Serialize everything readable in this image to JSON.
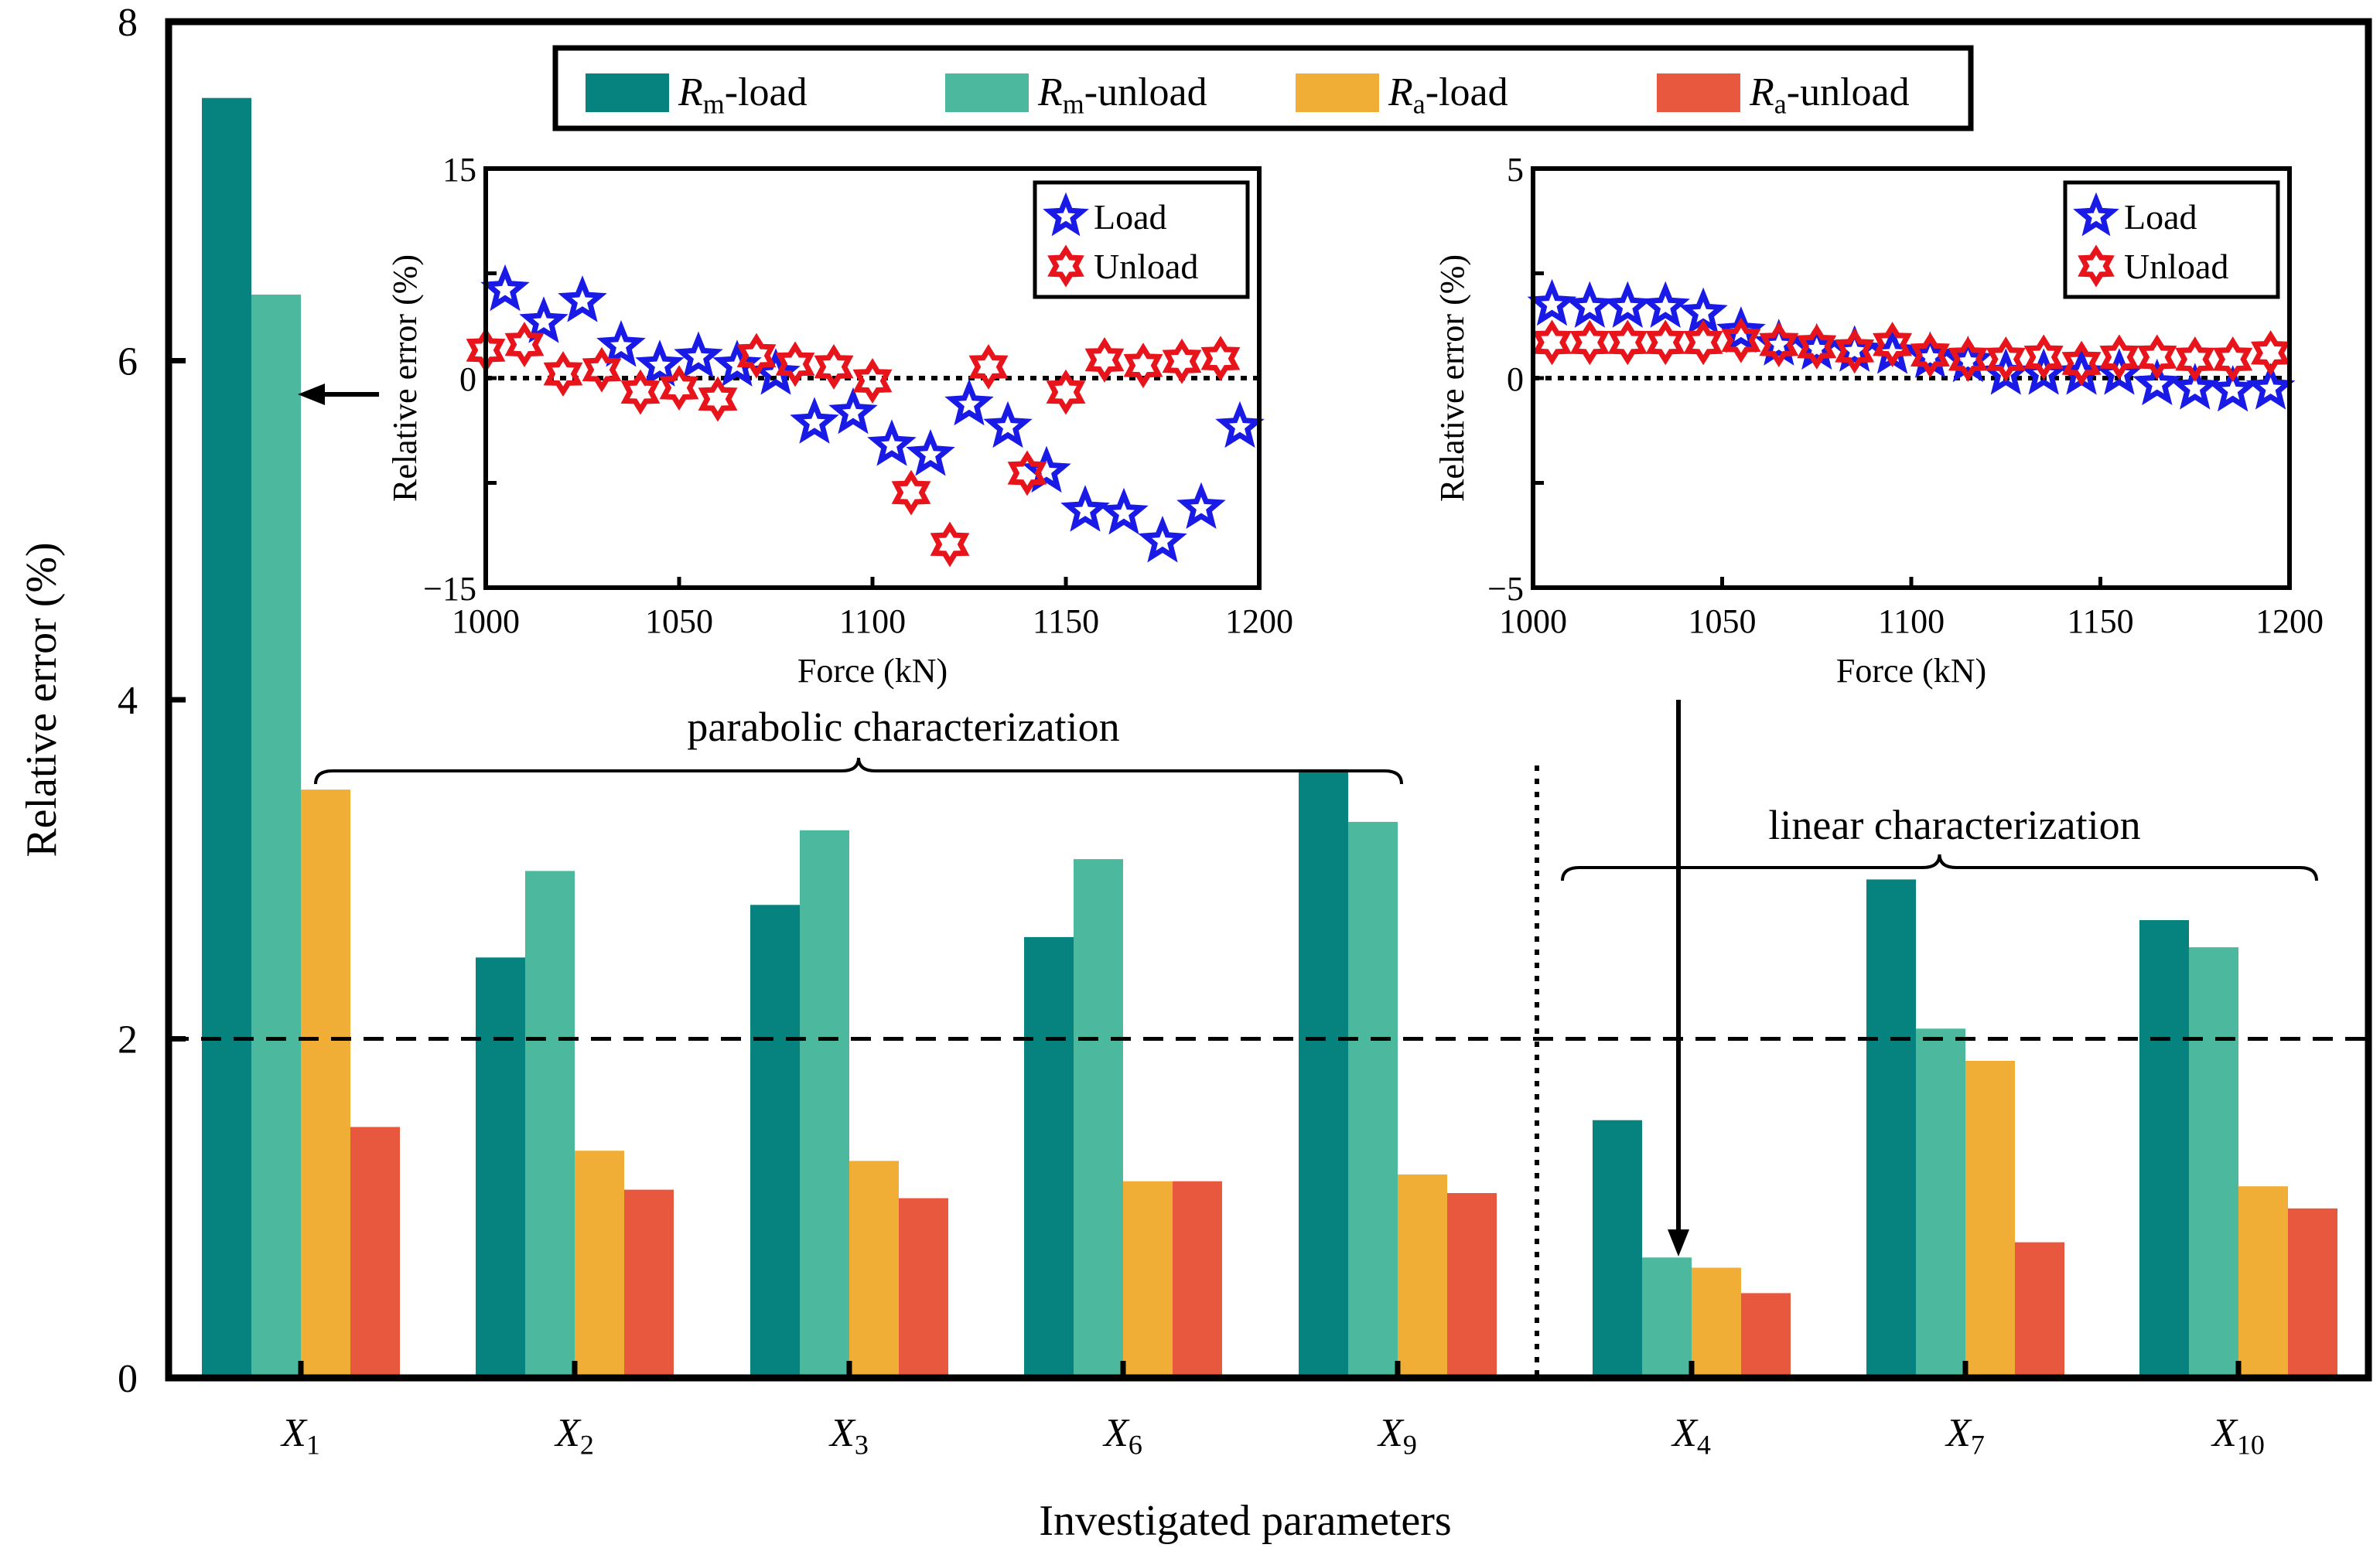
{
  "chart_data": [
    {
      "type": "bar",
      "title": "",
      "xlabel": "Investigated parameters",
      "ylabel": "Relative error (%)",
      "ylim": [
        0,
        8
      ],
      "yticks": [
        "0",
        "2",
        "4",
        "6",
        "8"
      ],
      "categories": [
        {
          "var": "X",
          "sub": "1"
        },
        {
          "var": "X",
          "sub": "2"
        },
        {
          "var": "X",
          "sub": "3"
        },
        {
          "var": "X",
          "sub": "6"
        },
        {
          "var": "X",
          "sub": "9"
        },
        {
          "var": "X",
          "sub": "4"
        },
        {
          "var": "X",
          "sub": "7"
        },
        {
          "var": "X",
          "sub": "10"
        }
      ],
      "series": [
        {
          "name": "Rm-load",
          "legend_main": "R",
          "legend_sub": "m",
          "legend_rest": "-load",
          "color": "#07837f",
          "values": [
            7.55,
            2.48,
            2.79,
            2.6,
            3.59,
            1.52,
            2.94,
            2.7
          ]
        },
        {
          "name": "Rm-unload",
          "legend_main": "R",
          "legend_sub": "m",
          "legend_rest": "-unload",
          "color": "#4cb99e",
          "values": [
            6.39,
            2.99,
            3.23,
            3.06,
            3.28,
            0.71,
            2.06,
            2.54
          ]
        },
        {
          "name": "Ra-load",
          "legend_main": "R",
          "legend_sub": "a",
          "legend_rest": "-load",
          "color": "#f0ae37",
          "values": [
            3.47,
            1.34,
            1.28,
            1.16,
            1.2,
            0.65,
            1.87,
            1.13
          ]
        },
        {
          "name": "Ra-unload",
          "legend_main": "R",
          "legend_sub": "a",
          "legend_rest": "-unload",
          "color": "#e8583f",
          "values": [
            1.48,
            1.11,
            1.06,
            1.16,
            1.09,
            0.5,
            0.8,
            1.0
          ]
        }
      ],
      "reference_line": 2,
      "group_labels": {
        "parabolic": "parabolic characterization",
        "linear": "linear characterization"
      }
    },
    {
      "type": "scatter",
      "xlabel": "Force (kN)",
      "ylabel": "Relative error (%)",
      "xlim": [
        1000,
        1200
      ],
      "ylim": [
        -15,
        15
      ],
      "xticks": [
        "1000",
        "1050",
        "1100",
        "1150",
        "1200"
      ],
      "yticks": [
        "15",
        "0",
        "−15"
      ],
      "series": [
        {
          "name": "Load",
          "color": "#1a1ae6",
          "x": [
            1005,
            1015,
            1025,
            1035,
            1045,
            1055,
            1065,
            1075,
            1085,
            1095,
            1105,
            1115,
            1125,
            1135,
            1145,
            1155,
            1165,
            1175,
            1185,
            1195
          ],
          "y": [
            6.3,
            4.0,
            5.5,
            2.3,
            0.9,
            1.5,
            0.9,
            0.3,
            -3.2,
            -2.5,
            -4.8,
            -5.5,
            -1.9,
            -3.5,
            -6.7,
            -9.5,
            -9.7,
            -11.7,
            -9.3,
            -3.5
          ]
        },
        {
          "name": "Unload",
          "color": "#e8141c",
          "x": [
            1000,
            1010,
            1020,
            1030,
            1040,
            1050,
            1060,
            1070,
            1080,
            1090,
            1100,
            1110,
            1120,
            1130,
            1140,
            1150,
            1160,
            1170,
            1180,
            1190
          ],
          "y": [
            2.0,
            2.4,
            0.3,
            0.6,
            -1.0,
            -0.7,
            -1.5,
            1.6,
            1.0,
            0.8,
            -0.2,
            -8.2,
            -11.9,
            0.8,
            -6.8,
            -1.0,
            1.3,
            0.9,
            1.2,
            1.4
          ]
        }
      ]
    },
    {
      "type": "scatter",
      "xlabel": "Force (kN)",
      "ylabel": "Relative error (%)",
      "xlim": [
        1000,
        1200
      ],
      "ylim": [
        -5,
        5
      ],
      "xticks": [
        "1000",
        "1050",
        "1100",
        "1150",
        "1200"
      ],
      "yticks": [
        "5",
        "0",
        "−5"
      ],
      "series": [
        {
          "name": "Load",
          "color": "#1a1ae6",
          "x": [
            1005,
            1015,
            1025,
            1035,
            1045,
            1055,
            1065,
            1075,
            1085,
            1095,
            1105,
            1115,
            1125,
            1135,
            1145,
            1155,
            1165,
            1175,
            1185,
            1195
          ],
          "y": [
            1.75,
            1.7,
            1.7,
            1.7,
            1.55,
            1.1,
            0.8,
            0.7,
            0.65,
            0.6,
            0.5,
            0.4,
            0.1,
            0.1,
            0.1,
            0.1,
            -0.15,
            -0.25,
            -0.3,
            -0.25
          ]
        },
        {
          "name": "Unload",
          "color": "#e8141c",
          "x": [
            1005,
            1015,
            1025,
            1035,
            1045,
            1055,
            1065,
            1075,
            1085,
            1095,
            1105,
            1115,
            1125,
            1135,
            1145,
            1155,
            1165,
            1175,
            1185,
            1195
          ],
          "y": [
            0.85,
            0.85,
            0.85,
            0.85,
            0.85,
            0.9,
            0.8,
            0.75,
            0.65,
            0.8,
            0.55,
            0.45,
            0.45,
            0.5,
            0.35,
            0.5,
            0.5,
            0.45,
            0.45,
            0.6
          ]
        }
      ]
    }
  ]
}
